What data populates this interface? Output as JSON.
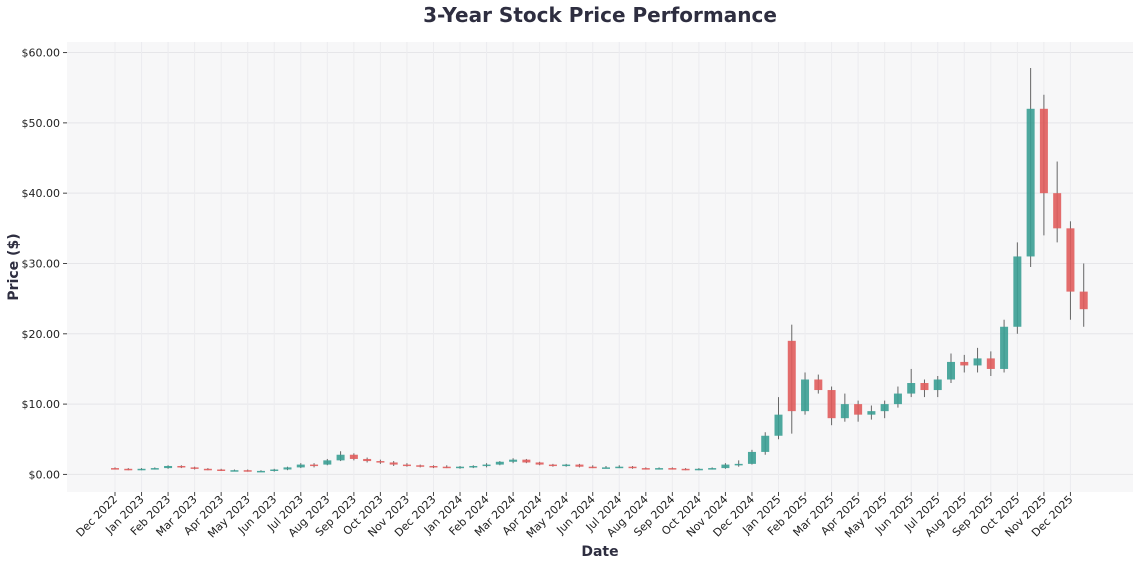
{
  "chart_data": {
    "type": "candlestick",
    "title": "3-Year Stock Price Performance",
    "x_label": "Date",
    "y_label": "Price ($)",
    "categories": [
      "Dec 2022",
      null,
      "Jan 2023",
      null,
      "Feb 2023",
      null,
      "Mar 2023",
      null,
      "Apr 2023",
      null,
      "May 2023",
      null,
      "Jun 2023",
      null,
      "Jul 2023",
      null,
      "Aug 2023",
      null,
      "Sep 2023",
      null,
      "Oct 2023",
      null,
      "Nov 2023",
      null,
      "Dec 2023",
      null,
      "Jan 2024",
      null,
      "Feb 2024",
      null,
      "Mar 2024",
      null,
      "Apr 2024",
      null,
      "May 2024",
      null,
      "Jun 2024",
      null,
      "Jul 2024",
      null,
      "Aug 2024",
      null,
      "Sep 2024",
      null,
      "Oct 2024",
      null,
      "Nov 2024",
      null,
      "Dec 2024",
      null,
      "Jan 2025",
      null,
      "Feb 2025",
      null,
      "Mar 2025",
      null,
      "Apr 2025",
      null,
      "May 2025",
      null,
      "Jun 2025",
      null,
      "Jul 2025",
      null,
      "Aug 2025",
      null,
      "Sep 2025",
      null,
      "Oct 2025",
      null,
      "Nov 2025",
      null,
      "Dec 2025",
      null
    ],
    "open": [
      0.9,
      0.8,
      0.7,
      0.8,
      0.9,
      1.2,
      1.0,
      0.8,
      0.7,
      0.6,
      0.6,
      0.5,
      0.5,
      0.7,
      1.0,
      1.4,
      1.4,
      2.0,
      2.8,
      2.2,
      1.9,
      1.7,
      1.4,
      1.3,
      1.2,
      1.1,
      1.0,
      1.1,
      1.2,
      1.4,
      1.8,
      2.1,
      1.7,
      1.4,
      1.2,
      1.4,
      1.1,
      1.0,
      1.0,
      1.1,
      0.9,
      0.8,
      0.9,
      0.8,
      0.7,
      0.8,
      0.9,
      1.4,
      1.5,
      3.2,
      5.5,
      19.0,
      9.0,
      13.5,
      12.0,
      8.0,
      10.0,
      8.5,
      9.0,
      10.0,
      11.5,
      13.0,
      12.0,
      13.5,
      16.0,
      15.5,
      16.5,
      15.0,
      21.0,
      31.0,
      52.0,
      40.0,
      35.0,
      26.0
    ],
    "high": [
      1.0,
      0.9,
      0.9,
      1.0,
      1.3,
      1.3,
      1.1,
      0.9,
      0.8,
      0.7,
      0.7,
      0.6,
      0.8,
      1.1,
      1.6,
      1.6,
      2.2,
      3.3,
      3.0,
      2.4,
      2.1,
      1.9,
      1.6,
      1.4,
      1.3,
      1.3,
      1.2,
      1.3,
      1.6,
      1.9,
      2.3,
      2.2,
      1.8,
      1.5,
      1.5,
      1.5,
      1.3,
      1.2,
      1.3,
      1.2,
      1.0,
      1.0,
      1.0,
      0.9,
      0.9,
      1.0,
      1.6,
      2.0,
      3.5,
      6.0,
      11.0,
      21.3,
      14.5,
      14.2,
      12.5,
      11.5,
      10.5,
      9.8,
      10.5,
      12.5,
      15.0,
      13.5,
      14.0,
      17.2,
      17.0,
      18.0,
      17.5,
      22.0,
      33.0,
      57.8,
      54.0,
      44.5,
      36.0,
      30.0
    ],
    "low": [
      0.7,
      0.6,
      0.6,
      0.7,
      0.8,
      0.9,
      0.7,
      0.6,
      0.5,
      0.5,
      0.4,
      0.4,
      0.4,
      0.6,
      0.9,
      1.0,
      1.3,
      1.9,
      2.0,
      1.7,
      1.5,
      1.2,
      1.1,
      1.0,
      0.9,
      0.9,
      0.8,
      0.9,
      1.0,
      1.3,
      1.6,
      1.6,
      1.3,
      1.1,
      1.1,
      1.0,
      0.9,
      0.9,
      0.9,
      0.8,
      0.7,
      0.7,
      0.7,
      0.6,
      0.6,
      0.7,
      0.8,
      1.1,
      1.4,
      2.8,
      5.0,
      5.8,
      8.5,
      11.5,
      7.0,
      7.5,
      7.5,
      7.8,
      8.0,
      9.5,
      11.0,
      11.0,
      11.0,
      13.0,
      14.5,
      14.5,
      14.0,
      14.5,
      20.0,
      29.5,
      34.0,
      33.0,
      22.0,
      21.0
    ],
    "close": [
      0.8,
      0.7,
      0.8,
      0.9,
      1.2,
      1.0,
      0.8,
      0.7,
      0.6,
      0.6,
      0.5,
      0.5,
      0.7,
      1.0,
      1.4,
      1.3,
      2.0,
      2.8,
      2.2,
      1.9,
      1.7,
      1.4,
      1.3,
      1.2,
      1.1,
      1.0,
      1.1,
      1.2,
      1.4,
      1.8,
      2.1,
      1.7,
      1.4,
      1.2,
      1.4,
      1.1,
      1.0,
      1.0,
      1.1,
      0.9,
      0.8,
      0.9,
      0.8,
      0.7,
      0.8,
      0.9,
      1.4,
      1.5,
      3.2,
      5.5,
      8.5,
      9.0,
      13.5,
      12.0,
      8.0,
      10.0,
      8.5,
      9.0,
      10.0,
      11.5,
      13.0,
      12.0,
      13.5,
      16.0,
      15.5,
      16.5,
      15.0,
      21.0,
      31.0,
      52.0,
      40.0,
      35.0,
      26.0,
      23.5
    ],
    "up_color": "#3a9e94",
    "down_color": "#e05c5c",
    "ylim": [
      -2.5,
      61.5
    ],
    "yticks": [
      {
        "value": 0,
        "label": "$0.00"
      },
      {
        "value": 10,
        "label": "$10.00"
      },
      {
        "value": 20,
        "label": "$20.00"
      },
      {
        "value": 30,
        "label": "$30.00"
      },
      {
        "value": 40,
        "label": "$40.00"
      },
      {
        "value": 50,
        "label": "$50.00"
      },
      {
        "value": 60,
        "label": "$60.00"
      }
    ],
    "grid": true
  }
}
